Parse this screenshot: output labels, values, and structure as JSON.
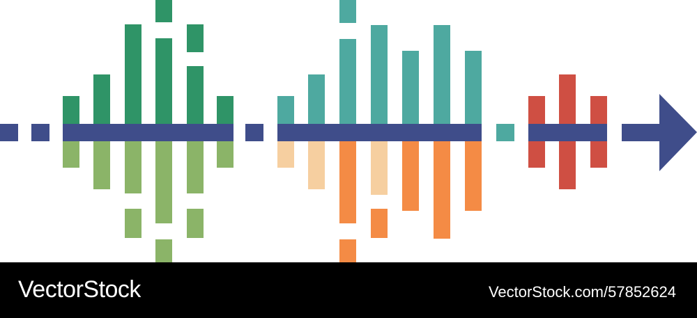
{
  "artwork": {
    "palette": {
      "navy": "#3f4d8a",
      "green_dark": "#2f9467",
      "green_light": "#8bb468",
      "teal": "#4ea9a0",
      "peach": "#f6cfa0",
      "orange": "#f48b45",
      "red": "#cf4f43"
    },
    "icons": [
      "sound-wave-icon",
      "arrow-right-icon"
    ]
  },
  "footer": {
    "brand": "VectorStock",
    "image_id": "VectorStock.com/57852624"
  }
}
